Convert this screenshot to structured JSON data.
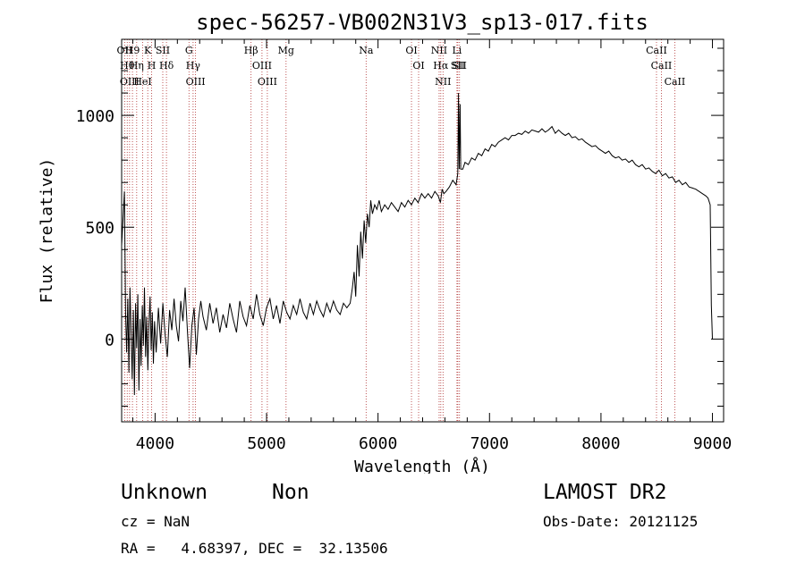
{
  "chart_data": {
    "type": "line",
    "title": "spec-56257-VB002N31V3_sp13-017.fits",
    "xlabel": "Wavelength (Å)",
    "ylabel": "Flux (relative)",
    "xlim": [
      3700,
      9100
    ],
    "ylim": [
      -370,
      1340
    ],
    "xticks": [
      4000,
      5000,
      6000,
      7000,
      8000,
      9000
    ],
    "xtick_labels": [
      "4000",
      "5000",
      "6000",
      "7000",
      "8000",
      "9000"
    ],
    "yticks": [
      0,
      500,
      1000
    ],
    "ytick_labels": [
      "0",
      "500",
      "1000"
    ],
    "series": [
      {
        "name": "flux",
        "points": [
          [
            3700,
            420
          ],
          [
            3715,
            560
          ],
          [
            3725,
            660
          ],
          [
            3735,
            120
          ],
          [
            3745,
            -60
          ],
          [
            3755,
            180
          ],
          [
            3765,
            -150
          ],
          [
            3775,
            230
          ],
          [
            3785,
            20
          ],
          [
            3795,
            -180
          ],
          [
            3805,
            130
          ],
          [
            3815,
            -250
          ],
          [
            3825,
            160
          ],
          [
            3835,
            -40
          ],
          [
            3845,
            200
          ],
          [
            3855,
            -230
          ],
          [
            3865,
            90
          ],
          [
            3875,
            -120
          ],
          [
            3885,
            150
          ],
          [
            3895,
            -30
          ],
          [
            3905,
            230
          ],
          [
            3915,
            -80
          ],
          [
            3925,
            100
          ],
          [
            3935,
            -140
          ],
          [
            3945,
            60
          ],
          [
            3955,
            190
          ],
          [
            3965,
            -50
          ],
          [
            3975,
            120
          ],
          [
            3985,
            -110
          ],
          [
            3995,
            80
          ],
          [
            4010,
            -60
          ],
          [
            4030,
            140
          ],
          [
            4050,
            -20
          ],
          [
            4070,
            160
          ],
          [
            4090,
            20
          ],
          [
            4110,
            -80
          ],
          [
            4130,
            130
          ],
          [
            4150,
            40
          ],
          [
            4170,
            180
          ],
          [
            4190,
            60
          ],
          [
            4210,
            -10
          ],
          [
            4230,
            170
          ],
          [
            4250,
            80
          ],
          [
            4270,
            230
          ],
          [
            4290,
            40
          ],
          [
            4310,
            -130
          ],
          [
            4330,
            60
          ],
          [
            4350,
            140
          ],
          [
            4370,
            -70
          ],
          [
            4390,
            90
          ],
          [
            4410,
            170
          ],
          [
            4430,
            100
          ],
          [
            4460,
            40
          ],
          [
            4490,
            160
          ],
          [
            4520,
            70
          ],
          [
            4550,
            140
          ],
          [
            4580,
            30
          ],
          [
            4610,
            110
          ],
          [
            4640,
            50
          ],
          [
            4670,
            160
          ],
          [
            4700,
            90
          ],
          [
            4730,
            30
          ],
          [
            4760,
            170
          ],
          [
            4790,
            100
          ],
          [
            4820,
            60
          ],
          [
            4850,
            150
          ],
          [
            4880,
            90
          ],
          [
            4910,
            200
          ],
          [
            4940,
            110
          ],
          [
            4970,
            60
          ],
          [
            5000,
            140
          ],
          [
            5030,
            180
          ],
          [
            5060,
            90
          ],
          [
            5090,
            150
          ],
          [
            5120,
            70
          ],
          [
            5150,
            170
          ],
          [
            5180,
            120
          ],
          [
            5210,
            90
          ],
          [
            5240,
            150
          ],
          [
            5270,
            110
          ],
          [
            5300,
            180
          ],
          [
            5330,
            120
          ],
          [
            5360,
            90
          ],
          [
            5390,
            160
          ],
          [
            5420,
            110
          ],
          [
            5450,
            170
          ],
          [
            5480,
            130
          ],
          [
            5510,
            100
          ],
          [
            5540,
            160
          ],
          [
            5570,
            120
          ],
          [
            5600,
            170
          ],
          [
            5630,
            130
          ],
          [
            5660,
            110
          ],
          [
            5690,
            160
          ],
          [
            5720,
            140
          ],
          [
            5750,
            160
          ],
          [
            5770,
            230
          ],
          [
            5785,
            300
          ],
          [
            5800,
            190
          ],
          [
            5815,
            420
          ],
          [
            5830,
            280
          ],
          [
            5845,
            480
          ],
          [
            5860,
            360
          ],
          [
            5875,
            530
          ],
          [
            5890,
            430
          ],
          [
            5905,
            560
          ],
          [
            5920,
            500
          ],
          [
            5935,
            620
          ],
          [
            5950,
            560
          ],
          [
            5970,
            600
          ],
          [
            5990,
            580
          ],
          [
            6010,
            620
          ],
          [
            6030,
            570
          ],
          [
            6060,
            600
          ],
          [
            6090,
            580
          ],
          [
            6120,
            610
          ],
          [
            6150,
            590
          ],
          [
            6180,
            570
          ],
          [
            6210,
            610
          ],
          [
            6240,
            590
          ],
          [
            6270,
            620
          ],
          [
            6300,
            600
          ],
          [
            6330,
            630
          ],
          [
            6360,
            610
          ],
          [
            6390,
            650
          ],
          [
            6420,
            630
          ],
          [
            6450,
            650
          ],
          [
            6480,
            630
          ],
          [
            6510,
            660
          ],
          [
            6540,
            640
          ],
          [
            6560,
            610
          ],
          [
            6575,
            670
          ],
          [
            6590,
            650
          ],
          [
            6610,
            660
          ],
          [
            6640,
            680
          ],
          [
            6670,
            710
          ],
          [
            6700,
            690
          ],
          [
            6715,
            740
          ],
          [
            6722,
            1100
          ],
          [
            6728,
            760
          ],
          [
            6736,
            1050
          ],
          [
            6742,
            760
          ],
          [
            6760,
            760
          ],
          [
            6780,
            790
          ],
          [
            6810,
            780
          ],
          [
            6840,
            810
          ],
          [
            6870,
            800
          ],
          [
            6900,
            830
          ],
          [
            6930,
            820
          ],
          [
            6960,
            850
          ],
          [
            6990,
            840
          ],
          [
            7020,
            870
          ],
          [
            7050,
            860
          ],
          [
            7080,
            880
          ],
          [
            7110,
            890
          ],
          [
            7140,
            900
          ],
          [
            7170,
            890
          ],
          [
            7200,
            910
          ],
          [
            7230,
            910
          ],
          [
            7260,
            920
          ],
          [
            7290,
            915
          ],
          [
            7320,
            930
          ],
          [
            7350,
            920
          ],
          [
            7380,
            935
          ],
          [
            7410,
            930
          ],
          [
            7440,
            925
          ],
          [
            7470,
            940
          ],
          [
            7500,
            925
          ],
          [
            7530,
            935
          ],
          [
            7560,
            950
          ],
          [
            7590,
            920
          ],
          [
            7620,
            935
          ],
          [
            7650,
            920
          ],
          [
            7680,
            910
          ],
          [
            7710,
            920
          ],
          [
            7740,
            900
          ],
          [
            7770,
            905
          ],
          [
            7800,
            890
          ],
          [
            7830,
            895
          ],
          [
            7860,
            880
          ],
          [
            7890,
            870
          ],
          [
            7920,
            860
          ],
          [
            7950,
            865
          ],
          [
            7980,
            850
          ],
          [
            8010,
            840
          ],
          [
            8040,
            830
          ],
          [
            8070,
            840
          ],
          [
            8100,
            820
          ],
          [
            8130,
            810
          ],
          [
            8160,
            815
          ],
          [
            8190,
            800
          ],
          [
            8220,
            805
          ],
          [
            8250,
            790
          ],
          [
            8280,
            800
          ],
          [
            8310,
            780
          ],
          [
            8340,
            770
          ],
          [
            8370,
            780
          ],
          [
            8400,
            760
          ],
          [
            8430,
            765
          ],
          [
            8460,
            750
          ],
          [
            8490,
            740
          ],
          [
            8520,
            755
          ],
          [
            8550,
            730
          ],
          [
            8580,
            740
          ],
          [
            8610,
            720
          ],
          [
            8640,
            725
          ],
          [
            8670,
            700
          ],
          [
            8700,
            710
          ],
          [
            8730,
            690
          ],
          [
            8760,
            700
          ],
          [
            8790,
            680
          ],
          [
            8820,
            675
          ],
          [
            8850,
            670
          ],
          [
            8880,
            660
          ],
          [
            8910,
            650
          ],
          [
            8940,
            640
          ],
          [
            8960,
            630
          ],
          [
            8980,
            600
          ],
          [
            8990,
            150
          ],
          [
            9000,
            0
          ]
        ]
      }
    ],
    "lines": [
      {
        "w": 3727,
        "label": "OII"
      },
      {
        "w": 3750,
        "label": "Hθ"
      },
      {
        "w": 3771,
        "label": "OIII"
      },
      {
        "w": 3797,
        "label": "H9"
      },
      {
        "w": 3835,
        "label": "Hη"
      },
      {
        "w": 3889,
        "label": "HeI"
      },
      {
        "w": 3934,
        "label": "K"
      },
      {
        "w": 3969,
        "label": "H"
      },
      {
        "w": 4069,
        "label": "SII"
      },
      {
        "w": 4102,
        "label": "Hδ"
      },
      {
        "w": 4304,
        "label": "G"
      },
      {
        "w": 4341,
        "label": "Hγ"
      },
      {
        "w": 4363,
        "label": "OIII"
      },
      {
        "w": 4861,
        "label": "Hβ"
      },
      {
        "w": 4959,
        "label": "OIII"
      },
      {
        "w": 5007,
        "label": "OIII"
      },
      {
        "w": 5175,
        "label": "Mg"
      },
      {
        "w": 5893,
        "label": "Na"
      },
      {
        "w": 6300,
        "label": "OI"
      },
      {
        "w": 6364,
        "label": "OI"
      },
      {
        "w": 6548,
        "label": "NII"
      },
      {
        "w": 6563,
        "label": "Hα"
      },
      {
        "w": 6583,
        "label": "NII"
      },
      {
        "w": 6708,
        "label": "Li"
      },
      {
        "w": 6716,
        "label": "SII"
      },
      {
        "w": 6731,
        "label": "SII"
      },
      {
        "w": 8498,
        "label": "CaII"
      },
      {
        "w": 8542,
        "label": "CaII"
      },
      {
        "w": 8662,
        "label": "CaII"
      }
    ]
  },
  "info": {
    "class": "Unknown",
    "subclass": "Non",
    "cz": "cz = NaN",
    "coords": "RA =   4.68397, DEC =  32.13506",
    "survey": "LAMOST DR2",
    "obs_date": "Obs-Date: 20121125"
  },
  "colors": {
    "line_marker": "#b03030",
    "spectrum": "#000000",
    "axes": "#000000"
  }
}
